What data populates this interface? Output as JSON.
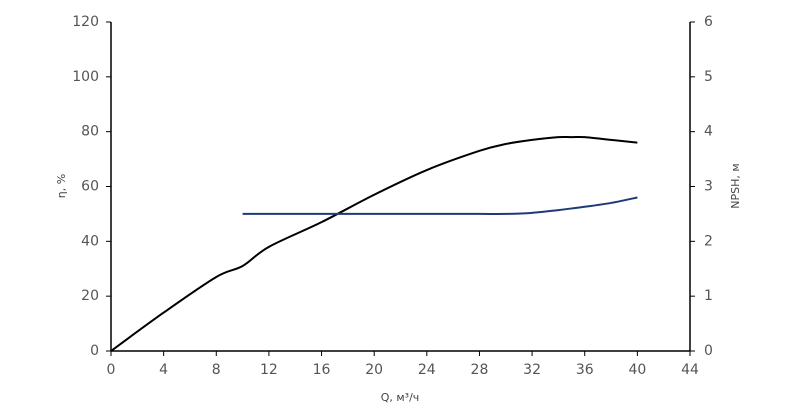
{
  "chart_data": {
    "type": "line",
    "x": [
      0,
      4,
      8,
      10,
      12,
      16,
      20,
      24,
      28,
      30,
      32,
      34,
      35,
      36,
      38,
      40
    ],
    "series": [
      {
        "name": "η",
        "color": "#000000",
        "values": [
          0,
          14,
          27,
          31,
          38,
          47,
          57,
          66,
          73,
          75.5,
          77,
          78,
          78,
          78,
          77,
          76
        ]
      },
      {
        "name": "NPSH",
        "color": "#1f3a7a",
        "axis": "y2",
        "values": [
          null,
          null,
          null,
          2.5,
          2.5,
          2.5,
          2.5,
          2.5,
          2.5,
          2.5,
          2.52,
          2.57,
          2.6,
          2.63,
          2.7,
          2.8
        ]
      }
    ],
    "x_label": "Q, м³/ч",
    "y_label": "η, %",
    "y2_label": "NPSH, м",
    "xlim": [
      0,
      44
    ],
    "xticks": [
      0,
      4,
      8,
      12,
      16,
      20,
      24,
      28,
      32,
      36,
      40,
      44
    ],
    "ylim": [
      0,
      120
    ],
    "yticks": [
      0,
      20,
      40,
      60,
      80,
      100,
      120
    ],
    "y2lim": [
      0,
      6
    ],
    "y2ticks": [
      0,
      1,
      2,
      3,
      4,
      5,
      6
    ],
    "grid": false
  }
}
